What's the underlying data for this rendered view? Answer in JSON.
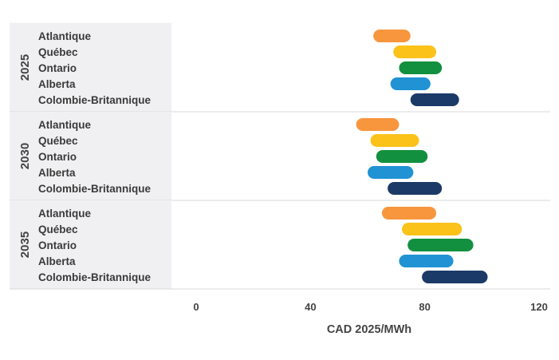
{
  "chart_data": {
    "type": "floating-bar",
    "orientation": "horizontal",
    "xlabel": "CAD 2025/MWh",
    "xlim": [
      0,
      120
    ],
    "xticks": [
      0,
      40,
      80,
      120
    ],
    "groups": [
      {
        "year": "2025",
        "series": [
          {
            "name": "Atlantique",
            "range": [
              62,
              75
            ]
          },
          {
            "name": "Québec",
            "range": [
              69,
              84
            ]
          },
          {
            "name": "Ontario",
            "range": [
              71,
              86
            ]
          },
          {
            "name": "Alberta",
            "range": [
              68,
              82
            ]
          },
          {
            "name": "Colombie-Britannique",
            "range": [
              75,
              92
            ]
          }
        ]
      },
      {
        "year": "2030",
        "series": [
          {
            "name": "Atlantique",
            "range": [
              56,
              71
            ]
          },
          {
            "name": "Québec",
            "range": [
              61,
              78
            ]
          },
          {
            "name": "Ontario",
            "range": [
              63,
              81
            ]
          },
          {
            "name": "Alberta",
            "range": [
              60,
              76
            ]
          },
          {
            "name": "Colombie-Britannique",
            "range": [
              67,
              86
            ]
          }
        ]
      },
      {
        "year": "2035",
        "series": [
          {
            "name": "Atlantique",
            "range": [
              65,
              84
            ]
          },
          {
            "name": "Québec",
            "range": [
              72,
              93
            ]
          },
          {
            "name": "Ontario",
            "range": [
              74,
              97
            ]
          },
          {
            "name": "Alberta",
            "range": [
              71,
              90
            ]
          },
          {
            "name": "Colombie-Britannique",
            "range": [
              79,
              102
            ]
          }
        ]
      }
    ],
    "colors": {
      "Atlantique": "#f7963d",
      "Québec": "#fbc219",
      "Ontario": "#12903f",
      "Alberta": "#2192d4",
      "Colombie-Britannique": "#1b3a68"
    },
    "grid": false
  }
}
